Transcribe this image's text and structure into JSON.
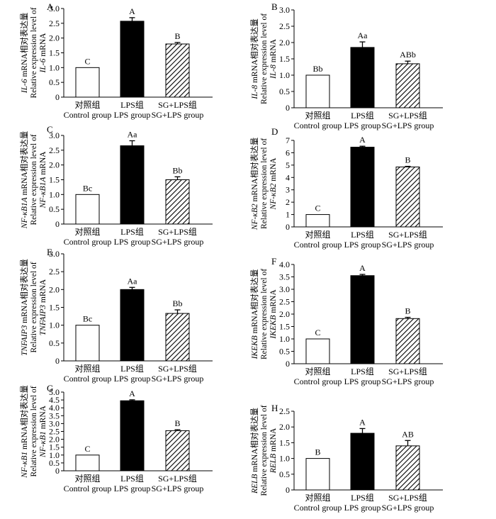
{
  "chart_data": [
    {
      "panel": "A",
      "type": "bar",
      "categories": [
        [
          "对照组",
          "Control group"
        ],
        [
          "LPS组",
          "LPS group"
        ],
        [
          "SG+LPS组",
          "SG+LPS group"
        ]
      ],
      "values": [
        1.0,
        2.57,
        1.8
      ],
      "errors": [
        0.0,
        0.12,
        0.05
      ],
      "sig": [
        "C",
        "A",
        "B"
      ],
      "ylim": [
        0,
        3.0
      ],
      "yticks": [
        "0",
        "0.5",
        "1.0",
        "1.5",
        "2.0",
        "2.5",
        "3.0"
      ],
      "ylabel": [
        [
          "IL-6",
          " mRNA相对表达量"
        ],
        [
          "Relative expression level of"
        ],
        [
          "IL-6",
          " mRNA"
        ]
      ]
    },
    {
      "panel": "B",
      "type": "bar",
      "categories": [
        [
          "对照组",
          "Control group"
        ],
        [
          "LPS组",
          "LPS group"
        ],
        [
          "SG+LPS组",
          "SG+LPS group"
        ]
      ],
      "values": [
        1.0,
        1.85,
        1.35
      ],
      "errors": [
        0.0,
        0.17,
        0.08
      ],
      "sig": [
        "Bb",
        "Aa",
        "ABb"
      ],
      "ylim": [
        0,
        3.0
      ],
      "yticks": [
        "0",
        "0.5",
        "1.0",
        "1.5",
        "2.0",
        "2.5",
        "3.0"
      ],
      "ylabel": [
        [
          "IL-8",
          " mRNA相对表达量"
        ],
        [
          "Relative expression level of"
        ],
        [
          "IL-8",
          " mRNA"
        ]
      ]
    },
    {
      "panel": "C",
      "type": "bar",
      "categories": [
        [
          "对照组",
          "Control group"
        ],
        [
          "LPS组",
          "LPS group"
        ],
        [
          "SG+LPS组",
          "SG+LPS group"
        ]
      ],
      "values": [
        1.0,
        2.65,
        1.5
      ],
      "errors": [
        0.0,
        0.17,
        0.1
      ],
      "sig": [
        "Bc",
        "Aa",
        "Bb"
      ],
      "ylim": [
        0,
        3.0
      ],
      "yticks": [
        "0",
        "0.5",
        "1.0",
        "1.5",
        "2.0",
        "2.5",
        "3.0"
      ],
      "ylabel": [
        [
          "NF-κB1A",
          " mRNA相对表达量"
        ],
        [
          "Relative expression level of"
        ],
        [
          "NF-κB1A",
          " mRNA"
        ]
      ]
    },
    {
      "panel": "D",
      "type": "bar",
      "categories": [
        [
          "对照组",
          "Control group"
        ],
        [
          "LPS组",
          "LPS group"
        ],
        [
          "SG+LPS组",
          "SG+LPS group"
        ]
      ],
      "values": [
        1.0,
        6.45,
        4.85
      ],
      "errors": [
        0.0,
        0.08,
        0.05
      ],
      "sig": [
        "C",
        "A",
        "B"
      ],
      "ylim": [
        0,
        7
      ],
      "yticks": [
        "0",
        "1",
        "2",
        "3",
        "4",
        "5",
        "6",
        "7"
      ],
      "ylabel": [
        [
          "NF-κB2",
          " mRNA相对表达量"
        ],
        [
          "Relative expression level of"
        ],
        [
          "NF-κB2",
          " mRNA"
        ]
      ]
    },
    {
      "panel": "E",
      "type": "bar",
      "categories": [
        [
          "对照组",
          "Control group"
        ],
        [
          "LPS组",
          "LPS group"
        ],
        [
          "SG+LPS组",
          "SG+LPS group"
        ]
      ],
      "values": [
        1.0,
        2.0,
        1.33
      ],
      "errors": [
        0.0,
        0.06,
        0.1
      ],
      "sig": [
        "Bc",
        "Aa",
        "Bb"
      ],
      "ylim": [
        0,
        3.0
      ],
      "yticks": [
        "0",
        "0.5",
        "1.0",
        "1.5",
        "2.0",
        "2.5",
        "3.0"
      ],
      "ylabel": [
        [
          "TNFAIP3",
          " mRNA相对表达量"
        ],
        [
          "Relative expression level of"
        ],
        [
          "TNFAIP3",
          " mRNA"
        ]
      ]
    },
    {
      "panel": "F",
      "type": "bar",
      "categories": [
        [
          "对照组",
          "Control group"
        ],
        [
          "LPS组",
          "LPS group"
        ],
        [
          "SG+LPS组",
          "SG+LPS group"
        ]
      ],
      "values": [
        1.0,
        3.55,
        1.82
      ],
      "errors": [
        0.0,
        0.05,
        0.05
      ],
      "sig": [
        "C",
        "A",
        "B"
      ],
      "ylim": [
        0,
        4.0
      ],
      "yticks": [
        "0",
        "0.5",
        "1.0",
        "1.5",
        "2.0",
        "2.5",
        "3.0",
        "3.5",
        "4.0"
      ],
      "ylabel": [
        [
          "IKEKB",
          " mRNA相对表达量"
        ],
        [
          "Relative expression level of"
        ],
        [
          "IKEKB",
          " mRNA"
        ]
      ]
    },
    {
      "panel": "G",
      "type": "bar",
      "categories": [
        [
          "对照组",
          "Control group"
        ],
        [
          "LPS组",
          "LPS group"
        ],
        [
          "SG+LPS组",
          "SG+LPS group"
        ]
      ],
      "values": [
        1.0,
        4.45,
        2.55
      ],
      "errors": [
        0.0,
        0.06,
        0.06
      ],
      "sig": [
        "C",
        "A",
        "B"
      ],
      "ylim": [
        0,
        5.0
      ],
      "yticks": [
        "0",
        "0.5",
        "1.0",
        "1.5",
        "2.0",
        "2.5",
        "3.0",
        "3.5",
        "4.0",
        "4.5",
        "5.0"
      ],
      "ylabel": [
        [
          "NF-κB1",
          " mRNA相对表达量"
        ],
        [
          "Relative expression level of"
        ],
        [
          "NF-κB1",
          " mRNA"
        ]
      ]
    },
    {
      "panel": "H",
      "type": "bar",
      "categories": [
        [
          "对照组",
          "Control group"
        ],
        [
          "LPS组",
          "LPS group"
        ],
        [
          "SG+LPS组",
          "SG+LPS group"
        ]
      ],
      "values": [
        1.0,
        1.8,
        1.4
      ],
      "errors": [
        0.0,
        0.15,
        0.17
      ],
      "sig": [
        "B",
        "A",
        "AB"
      ],
      "ylim": [
        0,
        2.5
      ],
      "yticks": [
        "0",
        "0.5",
        "1.0",
        "1.5",
        "2.0",
        "2.5"
      ],
      "ylabel": [
        [
          "RELB",
          " mRNA相对表达量"
        ],
        [
          "Relative expression level of"
        ],
        [
          "RELB",
          " mRNA"
        ]
      ]
    }
  ],
  "colors": {
    "control_fill": "#ffffff",
    "lps_fill": "#000000",
    "sg_fill_pattern": "diagonal-hatch",
    "axis": "#000000"
  }
}
